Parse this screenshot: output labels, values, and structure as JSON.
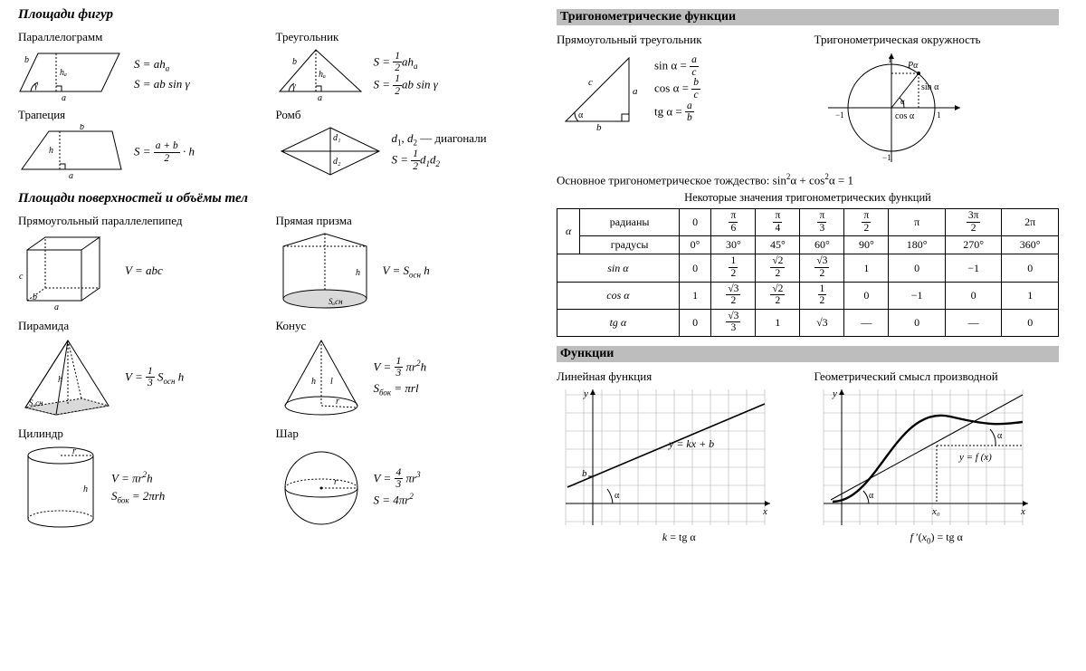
{
  "left": {
    "s1_title": "Площади фигур",
    "para": {
      "title": "Параллелограмм",
      "f1": "S = a hₐ",
      "f2": "S = a b sin γ",
      "a": "a",
      "b": "b",
      "h": "hₐ",
      "g": "γ"
    },
    "tri": {
      "title": "Треугольник",
      "pref": "S = ",
      "half_n": "1",
      "half_d": "2",
      "tail1": " a hₐ",
      "tail2": " a b sin γ",
      "a": "a",
      "b": "b",
      "h": "hₐ",
      "g": "γ"
    },
    "trap": {
      "title": "Трапеция",
      "a": "a",
      "b": "b",
      "h": "h",
      "fn_pre": "S = ",
      "fn_num": "a + b",
      "fn_den": "2",
      "fn_post": " · h"
    },
    "romb": {
      "title": "Ромб",
      "d1": "d₁",
      "d2": "d₂",
      "note": "d₁, d₂ — диагонали",
      "pref": "S = ",
      "half_n": "1",
      "half_d": "2",
      "tail": " d₁ d₂"
    },
    "s2_title": "Площади поверхностей и объёмы тел",
    "box": {
      "title": "Прямоугольный параллелепипед",
      "a": "a",
      "b": "b",
      "c": "c",
      "f": "V = abc"
    },
    "prism": {
      "title": "Прямая призма",
      "h": "h",
      "s": "Sₒсн",
      "f": "V = Sₒсн h"
    },
    "pyr": {
      "title": "Пирамида",
      "h": "h",
      "s": "Sₒсн",
      "pref": "V = ",
      "n": "1",
      "d": "3",
      "tail": " Sₒсн h"
    },
    "cone": {
      "title": "Конус",
      "h": "h",
      "l": "l",
      "r": "r",
      "pref": "V = ",
      "n": "1",
      "d": "3",
      "tail": " π r² h",
      "f2": "Sбок = π r l"
    },
    "cyl": {
      "title": "Цилиндр",
      "h": "h",
      "r": "r",
      "f1": "V = π r² h",
      "f2": "Sбок = 2π r h"
    },
    "sph": {
      "title": "Шар",
      "r": "r",
      "pref": "V = ",
      "n": "4",
      "d": "3",
      "tail": " π r³",
      "f2": "S = 4π r²"
    }
  },
  "right": {
    "bar1": "Тригонометрические функции",
    "rt": {
      "title": "Прямоугольный треугольник",
      "a": "a",
      "b": "b",
      "c": "c",
      "al": "α",
      "sin_l": "sin α = ",
      "sin_n": "a",
      "sin_d": "c",
      "cos_l": "cos α = ",
      "cos_n": "b",
      "cos_d": "c",
      "tg_l": "tg α = ",
      "tg_n": "a",
      "tg_d": "b"
    },
    "uc": {
      "title": "Тригонометрическая окружность",
      "one": "1",
      "mone": "−1",
      "P": "Pα",
      "sin": "sin α",
      "cos": "cos α",
      "al": "α"
    },
    "ident": "Основное тригонометрическое тождество: sin²α + cos²α = 1",
    "tcap": "Некоторые значения тригонометрических функций",
    "table": {
      "alpha": "α",
      "r_rad": "радианы",
      "r_deg": "градусы",
      "r_sin": "sin α",
      "r_cos": "cos α",
      "r_tg": "tg α",
      "rad": [
        "0",
        "π/6",
        "π/4",
        "π/3",
        "π/2",
        "π",
        "3π/2",
        "2π"
      ],
      "deg": [
        "0°",
        "30°",
        "45°",
        "60°",
        "90°",
        "180°",
        "270°",
        "360°"
      ],
      "sin": [
        "0",
        "1/2",
        "√2/2",
        "√3/2",
        "1",
        "0",
        "−1",
        "0"
      ],
      "cos": [
        "1",
        "√3/2",
        "√2/2",
        "1/2",
        "0",
        "−1",
        "0",
        "1"
      ],
      "tg": [
        "0",
        "√3/3",
        "1",
        "√3",
        "—",
        "0",
        "—",
        "0"
      ]
    },
    "bar2": "Функции",
    "lin": {
      "title": "Линейная функция",
      "x": "x",
      "y": "y",
      "b": "b",
      "al": "α",
      "eq": "y = kx + b",
      "cap": "k = tg α"
    },
    "der": {
      "title": "Геометрический смысл производной",
      "x": "x",
      "y": "y",
      "al": "α",
      "eq": "y = f (x)",
      "x0": "x₀",
      "cap": "f ′(x₀) = tg α"
    }
  },
  "style": {
    "stroke": "#000",
    "fill_shade": "#d9d9d9",
    "grid": "#7a7a7a",
    "font_dia": 10,
    "font_dia_it": "italic"
  }
}
